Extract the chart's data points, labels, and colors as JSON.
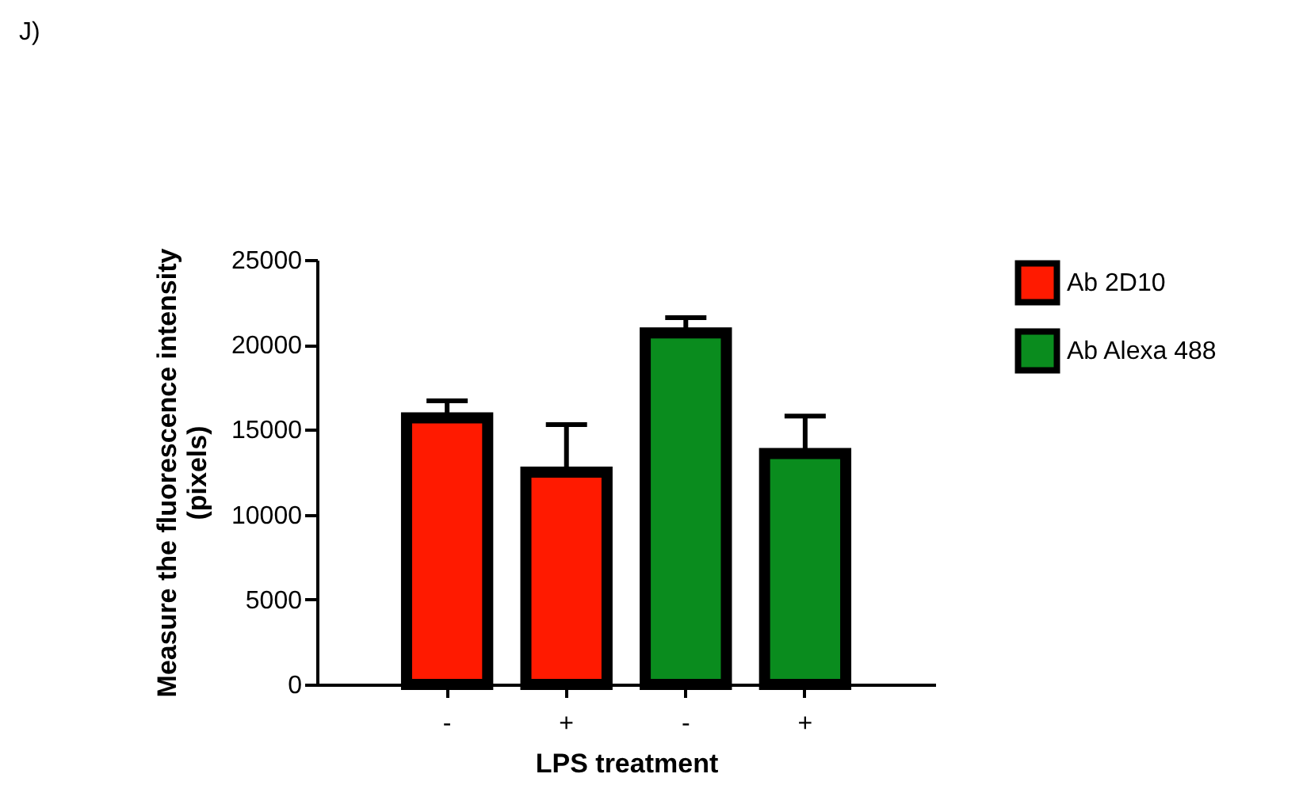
{
  "chart_data": {
    "type": "bar",
    "annotations": [
      "J)"
    ],
    "xlabel": "LPS treatment",
    "ylabel": "Measure the fluorescence intensity\n(pixels)",
    "categories": [
      "-",
      "+",
      "-",
      "+"
    ],
    "series": [
      {
        "name": "Ab 2D10",
        "color": "#ff1a00",
        "values": [
          15700,
          12500,
          null,
          null
        ],
        "errors": [
          [
            15700,
            16700
          ],
          [
            12500,
            15300
          ],
          null,
          null
        ]
      },
      {
        "name": "Ab Alexa 488",
        "color": "#0a8c1e",
        "values": [
          null,
          null,
          20700,
          13600
        ],
        "errors": [
          null,
          null,
          [
            20700,
            21600
          ],
          [
            13600,
            15800
          ]
        ]
      }
    ],
    "ylim": [
      0,
      25000
    ],
    "yticks": [
      0,
      5000,
      10000,
      15000,
      20000,
      25000
    ],
    "legend": "top right"
  }
}
